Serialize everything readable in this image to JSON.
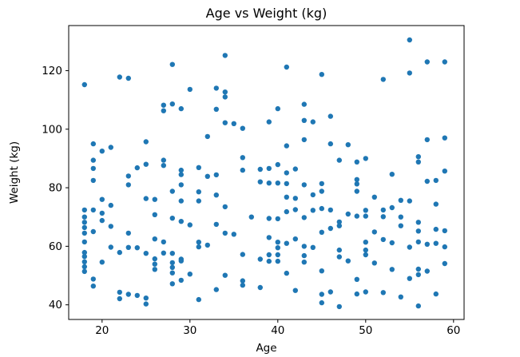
{
  "chart_data": {
    "type": "scatter",
    "title": "Age vs Weight (kg)",
    "xlabel": "Age",
    "ylabel": "Weight (kg)",
    "xlim": [
      16.2,
      61.2
    ],
    "ylim": [
      35.0,
      135.4
    ],
    "x_ticks": [
      20,
      30,
      40,
      50,
      60
    ],
    "y_ticks": [
      40,
      60,
      80,
      100,
      120
    ],
    "grid": false,
    "legend": "none",
    "marker_color": "#1f77b4",
    "marker_radius_px": 3.2,
    "points": [
      [
        18,
        115.2
      ],
      [
        18,
        72.4
      ],
      [
        18,
        70.0
      ],
      [
        18,
        68.2
      ],
      [
        18,
        66.4
      ],
      [
        18,
        64.5
      ],
      [
        18,
        61.5
      ],
      [
        18,
        57.9
      ],
      [
        18,
        56.5
      ],
      [
        18,
        54.7
      ],
      [
        18,
        53.0
      ],
      [
        18,
        51.4
      ],
      [
        19,
        95.0
      ],
      [
        19,
        89.4
      ],
      [
        19,
        86.6
      ],
      [
        19,
        82.5
      ],
      [
        19,
        72.4
      ],
      [
        19,
        65.0
      ],
      [
        19,
        48.8
      ],
      [
        19,
        46.4
      ],
      [
        20,
        92.5
      ],
      [
        20,
        76.0
      ],
      [
        20,
        71.3
      ],
      [
        20,
        68.8
      ],
      [
        20,
        54.6
      ],
      [
        21,
        93.8
      ],
      [
        21,
        74.0
      ],
      [
        21,
        66.8
      ],
      [
        21,
        59.7
      ],
      [
        22,
        117.8
      ],
      [
        22,
        57.9
      ],
      [
        22,
        44.3
      ],
      [
        22,
        42.1
      ],
      [
        23,
        117.4
      ],
      [
        23,
        84.0
      ],
      [
        23,
        81.0
      ],
      [
        23,
        64.5
      ],
      [
        23,
        59.6
      ],
      [
        23,
        43.6
      ],
      [
        24,
        86.8
      ],
      [
        24,
        59.5
      ],
      [
        24,
        43.2
      ],
      [
        25,
        95.7
      ],
      [
        25,
        88.0
      ],
      [
        25,
        76.3
      ],
      [
        25,
        57.6
      ],
      [
        25,
        42.3
      ],
      [
        25,
        40.3
      ],
      [
        26,
        76.0
      ],
      [
        26,
        70.8
      ],
      [
        26,
        62.5
      ],
      [
        26,
        55.7
      ],
      [
        26,
        53.9
      ],
      [
        26,
        52.1
      ],
      [
        27,
        108.2
      ],
      [
        27,
        106.3
      ],
      [
        27,
        89.4
      ],
      [
        27,
        87.6
      ],
      [
        27,
        61.5
      ],
      [
        27,
        57.7
      ],
      [
        28,
        122.1
      ],
      [
        28,
        108.6
      ],
      [
        28,
        78.8
      ],
      [
        28,
        69.6
      ],
      [
        28,
        57.6
      ],
      [
        28,
        54.4
      ],
      [
        28,
        52.8
      ],
      [
        28,
        50.9
      ],
      [
        28,
        47.2
      ],
      [
        29,
        107.0
      ],
      [
        29,
        86.0
      ],
      [
        29,
        84.5
      ],
      [
        29,
        81.0
      ],
      [
        29,
        75.5
      ],
      [
        29,
        68.5
      ],
      [
        29,
        55.6
      ],
      [
        29,
        55.0
      ],
      [
        29,
        48.4
      ],
      [
        30,
        113.6
      ],
      [
        30,
        67.3
      ],
      [
        30,
        50.5
      ],
      [
        31,
        86.9
      ],
      [
        31,
        78.6
      ],
      [
        31,
        75.5
      ],
      [
        31,
        61.4
      ],
      [
        31,
        59.8
      ],
      [
        31,
        41.8
      ],
      [
        32,
        97.5
      ],
      [
        32,
        83.9
      ],
      [
        32,
        60.4
      ],
      [
        33,
        114.0
      ],
      [
        33,
        106.8
      ],
      [
        33,
        84.4
      ],
      [
        33,
        77.5
      ],
      [
        33,
        67.5
      ],
      [
        33,
        45.2
      ],
      [
        34,
        125.2
      ],
      [
        34,
        112.7
      ],
      [
        34,
        111.0
      ],
      [
        34,
        102.2
      ],
      [
        34,
        73.5
      ],
      [
        34,
        64.5
      ],
      [
        34,
        50.1
      ],
      [
        35,
        101.9
      ],
      [
        35,
        64.1
      ],
      [
        36,
        100.3
      ],
      [
        36,
        90.3
      ],
      [
        36,
        86.0
      ],
      [
        36,
        57.2
      ],
      [
        36,
        48.2
      ],
      [
        36,
        46.7
      ],
      [
        37,
        70.0
      ],
      [
        38,
        86.3
      ],
      [
        38,
        82.0
      ],
      [
        38,
        55.6
      ],
      [
        38,
        45.9
      ],
      [
        39,
        102.5
      ],
      [
        39,
        86.6
      ],
      [
        39,
        81.6
      ],
      [
        39,
        69.5
      ],
      [
        39,
        63.0
      ],
      [
        39,
        57.1
      ],
      [
        39,
        54.9
      ],
      [
        40,
        107.0
      ],
      [
        40,
        87.9
      ],
      [
        40,
        81.6
      ],
      [
        40,
        69.4
      ],
      [
        40,
        61.4
      ],
      [
        40,
        59.5
      ],
      [
        40,
        57.1
      ],
      [
        40,
        54.9
      ],
      [
        41,
        121.2
      ],
      [
        41,
        94.3
      ],
      [
        41,
        85.1
      ],
      [
        41,
        81.4
      ],
      [
        41,
        76.8
      ],
      [
        41,
        71.8
      ],
      [
        41,
        61.0
      ],
      [
        41,
        50.8
      ],
      [
        42,
        86.4
      ],
      [
        42,
        76.4
      ],
      [
        42,
        72.5
      ],
      [
        42,
        62.5
      ],
      [
        42,
        44.9
      ],
      [
        43,
        108.5
      ],
      [
        43,
        103.0
      ],
      [
        43,
        96.4
      ],
      [
        43,
        81.0
      ],
      [
        43,
        69.8
      ],
      [
        43,
        60.0
      ],
      [
        43,
        56.8
      ],
      [
        43,
        54.6
      ],
      [
        44,
        102.5
      ],
      [
        44,
        77.6
      ],
      [
        44,
        72.3
      ],
      [
        44,
        59.6
      ],
      [
        45,
        118.7
      ],
      [
        45,
        81.4
      ],
      [
        45,
        78.8
      ],
      [
        45,
        72.9
      ],
      [
        45,
        64.8
      ],
      [
        45,
        51.6
      ],
      [
        45,
        43.6
      ],
      [
        45,
        40.7
      ],
      [
        46,
        104.4
      ],
      [
        46,
        95.0
      ],
      [
        46,
        72.4
      ],
      [
        46,
        66.1
      ],
      [
        46,
        44.4
      ],
      [
        47,
        89.4
      ],
      [
        47,
        68.3
      ],
      [
        47,
        67.0
      ],
      [
        47,
        58.7
      ],
      [
        47,
        56.4
      ],
      [
        47,
        39.4
      ],
      [
        48,
        94.7
      ],
      [
        48,
        71.0
      ],
      [
        48,
        55.0
      ],
      [
        49,
        88.8
      ],
      [
        49,
        82.8
      ],
      [
        49,
        81.3
      ],
      [
        49,
        78.8
      ],
      [
        49,
        70.3
      ],
      [
        49,
        48.7
      ],
      [
        49,
        43.7
      ],
      [
        50,
        90.0
      ],
      [
        50,
        72.3
      ],
      [
        50,
        70.3
      ],
      [
        50,
        61.4
      ],
      [
        50,
        58.7
      ],
      [
        50,
        57.1
      ],
      [
        50,
        44.4
      ],
      [
        51,
        76.8
      ],
      [
        51,
        64.9
      ],
      [
        51,
        54.3
      ],
      [
        52,
        117.0
      ],
      [
        52,
        72.4
      ],
      [
        52,
        70.1
      ],
      [
        52,
        62.3
      ],
      [
        52,
        44.2
      ],
      [
        53,
        84.6
      ],
      [
        53,
        73.2
      ],
      [
        53,
        61.2
      ],
      [
        53,
        52.1
      ],
      [
        54,
        75.7
      ],
      [
        54,
        70.0
      ],
      [
        54,
        67.0
      ],
      [
        54,
        42.7
      ],
      [
        55,
        130.5
      ],
      [
        55,
        119.2
      ],
      [
        55,
        75.5
      ],
      [
        55,
        59.7
      ],
      [
        55,
        49.0
      ],
      [
        56,
        90.6
      ],
      [
        56,
        88.8
      ],
      [
        56,
        68.2
      ],
      [
        56,
        65.2
      ],
      [
        56,
        61.5
      ],
      [
        56,
        52.2
      ],
      [
        56,
        50.3
      ],
      [
        56,
        39.6
      ],
      [
        57,
        123.0
      ],
      [
        57,
        96.4
      ],
      [
        57,
        82.2
      ],
      [
        57,
        60.7
      ],
      [
        57,
        51.5
      ],
      [
        58,
        82.5
      ],
      [
        58,
        74.4
      ],
      [
        58,
        65.8
      ],
      [
        58,
        61.0
      ],
      [
        58,
        43.7
      ],
      [
        59,
        123.0
      ],
      [
        59,
        97.0
      ],
      [
        59,
        85.7
      ],
      [
        59,
        65.3
      ],
      [
        59,
        59.8
      ],
      [
        59,
        54.1
      ]
    ]
  }
}
